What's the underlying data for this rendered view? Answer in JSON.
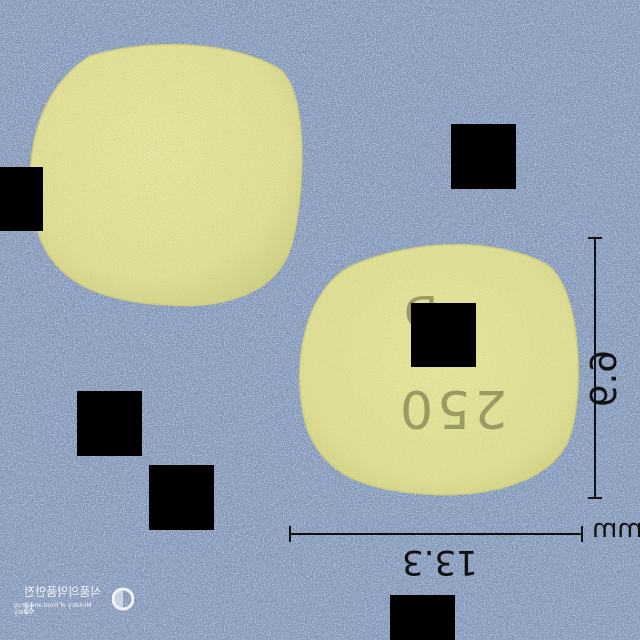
{
  "photo": {
    "background_color": "#a9bfe6",
    "tablet_color": "#e7e79c"
  },
  "tablet_back": {
    "name": "tablet-back-side"
  },
  "tablet_front": {
    "name": "tablet-front-side",
    "imprint_top": "D",
    "imprint_bottom": "250"
  },
  "dimensions": {
    "height_label": "6.9",
    "width_label": "13.3",
    "unit_label": "mm"
  },
  "watermark": {
    "korean": "식품의약품안전처",
    "english": "Ministry of Food and Drug Safety"
  },
  "redactions": [
    "redaction-box-1",
    "redaction-box-2",
    "redaction-box-3",
    "redaction-box-4",
    "redaction-box-5",
    "redaction-box-6"
  ]
}
